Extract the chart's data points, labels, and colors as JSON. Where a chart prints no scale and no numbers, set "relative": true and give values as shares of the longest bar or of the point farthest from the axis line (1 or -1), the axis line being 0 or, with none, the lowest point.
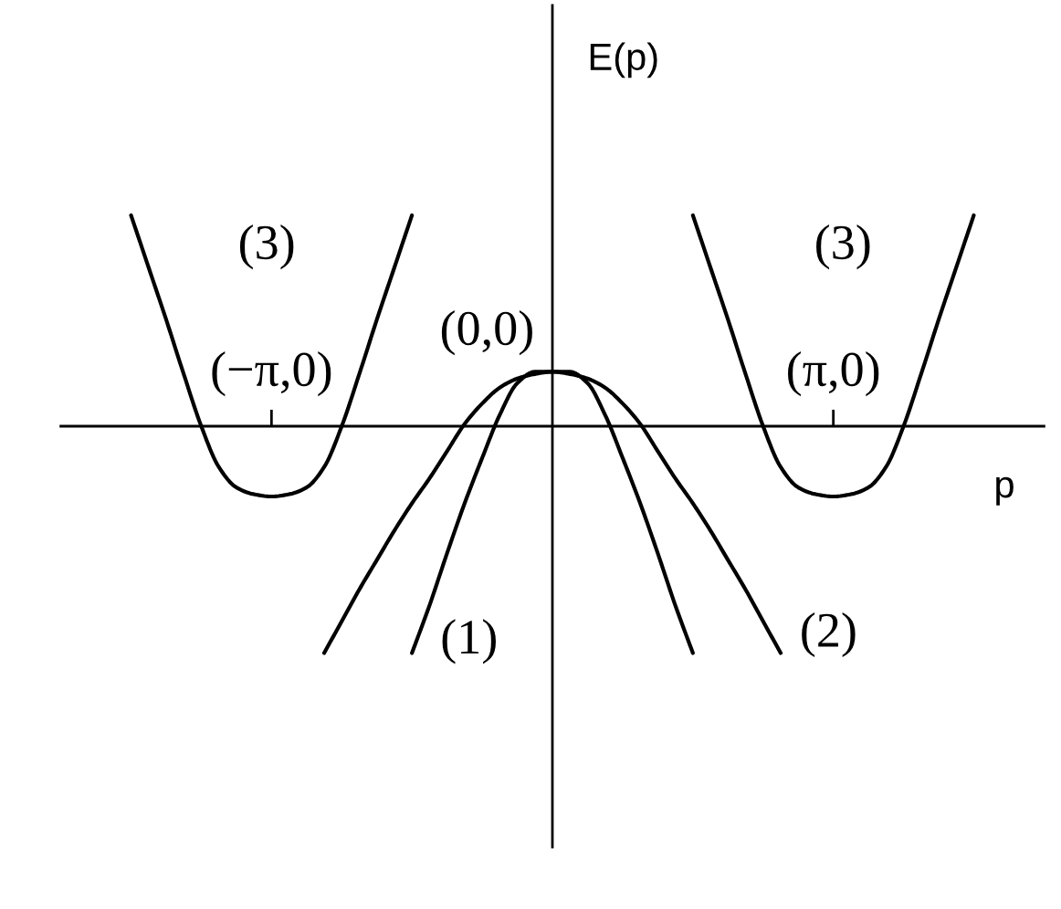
{
  "chart_data": {
    "type": "line",
    "relative": true,
    "tick_labels": "x",
    "xlabel": "p",
    "ylabel": "E(p)",
    "categories": [
      null,
      null,
      null,
      null,
      null,
      null,
      null,
      null,
      null,
      null,
      null,
      null,
      "(−π,0)",
      null,
      null,
      null,
      null,
      null,
      null,
      null,
      null,
      null,
      null,
      null,
      null,
      null,
      null,
      null,
      null,
      null,
      null,
      null,
      null,
      null,
      null,
      null,
      null,
      null,
      null,
      null,
      null,
      null,
      null,
      null,
      "(π,0)",
      null,
      null,
      null,
      null,
      null,
      null,
      null,
      null,
      null,
      null,
      null,
      null
    ],
    "series": [
      {
        "name": "(3)",
        "color": "#000000",
        "values": [
          null,
          null,
          null,
          null,
          0.93,
          0.7,
          0.47,
          0.23,
          0.0,
          -0.18,
          -0.27,
          -0.3,
          -0.31,
          -0.3,
          -0.27,
          -0.18,
          0.0,
          0.23,
          0.47,
          0.7,
          0.93,
          null,
          null,
          null,
          null,
          null,
          null,
          null,
          null,
          null,
          null,
          null,
          null,
          null,
          null,
          null,
          null,
          null,
          null,
          null,
          null,
          null,
          null,
          null,
          null,
          null,
          null,
          null,
          null,
          null,
          null,
          null,
          null,
          null,
          null,
          null,
          null
        ]
      },
      {
        "name": "(3)",
        "color": "#000000",
        "values": [
          null,
          null,
          null,
          null,
          null,
          null,
          null,
          null,
          null,
          null,
          null,
          null,
          null,
          null,
          null,
          null,
          null,
          null,
          null,
          null,
          null,
          null,
          null,
          null,
          null,
          null,
          null,
          null,
          null,
          null,
          null,
          null,
          null,
          null,
          null,
          null,
          0.93,
          0.7,
          0.47,
          0.23,
          0.0,
          -0.18,
          -0.27,
          -0.3,
          -0.31,
          -0.3,
          -0.27,
          -0.18,
          0.0,
          0.23,
          0.47,
          0.7,
          0.93,
          null,
          null,
          null,
          null
        ]
      },
      {
        "name": "(1)",
        "color": "#000000",
        "values": [
          null,
          null,
          null,
          null,
          null,
          null,
          null,
          null,
          null,
          null,
          null,
          null,
          null,
          null,
          null,
          null,
          null,
          null,
          null,
          null,
          -1.0,
          -0.79,
          -0.56,
          -0.34,
          -0.14,
          0.05,
          0.19,
          0.24,
          0.24,
          0.24,
          0.19,
          0.05,
          -0.14,
          -0.34,
          -0.56,
          -0.79,
          -1.0,
          null,
          null,
          null,
          null,
          null,
          null,
          null,
          null,
          null,
          null,
          null,
          null,
          null,
          null,
          null,
          null,
          null,
          null,
          null,
          null
        ]
      },
      {
        "name": "(2)",
        "color": "#000000",
        "values": [
          null,
          null,
          null,
          null,
          null,
          null,
          null,
          null,
          null,
          null,
          null,
          null,
          null,
          null,
          null,
          -1.0,
          -0.86,
          -0.72,
          -0.59,
          -0.46,
          -0.34,
          -0.23,
          -0.11,
          0.01,
          0.1,
          0.17,
          0.21,
          0.23,
          0.24,
          0.23,
          0.21,
          0.17,
          0.1,
          0.01,
          -0.11,
          -0.23,
          -0.34,
          -0.46,
          -0.59,
          -0.72,
          -0.86,
          -1.0,
          null,
          null,
          null,
          null,
          null,
          null,
          null,
          null,
          null,
          null,
          null,
          null,
          null,
          null,
          null
        ]
      }
    ],
    "annotations": [
      "(0,0)"
    ]
  }
}
